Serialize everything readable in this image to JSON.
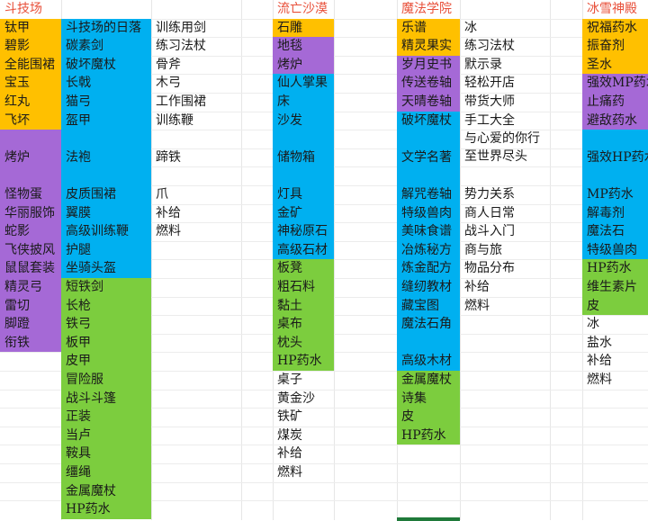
{
  "colors": {
    "orange": "#ffc000",
    "purple": "#a569d6",
    "blue": "#00b0f0",
    "green": "#7ccd3e",
    "none": "",
    "header": "#e8503a"
  },
  "columns": [
    {
      "id": "arena-a",
      "cells": [
        {
          "text": "斗技场",
          "color": "none",
          "header": true
        },
        {
          "text": "钛甲",
          "color": "orange"
        },
        {
          "text": "碧影",
          "color": "orange"
        },
        {
          "text": "全能围裙",
          "color": "orange"
        },
        {
          "text": "宝玉",
          "color": "orange"
        },
        {
          "text": "红丸",
          "color": "orange"
        },
        {
          "text": "飞坏",
          "color": "orange"
        },
        {
          "text": "烤炉",
          "color": "purple",
          "rows": 3
        },
        {
          "text": "怪物蛋",
          "color": "purple"
        },
        {
          "text": "华丽服饰",
          "color": "purple"
        },
        {
          "text": "蛇影",
          "color": "purple"
        },
        {
          "text": "飞侠披风",
          "color": "purple"
        },
        {
          "text": "鼠鼠套装",
          "color": "purple"
        },
        {
          "text": "精灵弓",
          "color": "purple"
        },
        {
          "text": "雷切",
          "color": "purple"
        },
        {
          "text": "脚蹬",
          "color": "purple"
        },
        {
          "text": "衔铁",
          "color": "purple"
        }
      ]
    },
    {
      "id": "arena-b",
      "cells": [
        {
          "text": "",
          "color": "none"
        },
        {
          "text": "斗技场的日落",
          "color": "blue"
        },
        {
          "text": "碳素剑",
          "color": "blue"
        },
        {
          "text": "破坏魔杖",
          "color": "blue"
        },
        {
          "text": "长戟",
          "color": "blue"
        },
        {
          "text": "猫弓",
          "color": "blue"
        },
        {
          "text": "盔甲",
          "color": "blue"
        },
        {
          "text": "法袍",
          "color": "blue",
          "rows": 3
        },
        {
          "text": "皮质围裙",
          "color": "blue"
        },
        {
          "text": "翼膜",
          "color": "blue"
        },
        {
          "text": "高级训练鞭",
          "color": "blue"
        },
        {
          "text": "护腿",
          "color": "blue"
        },
        {
          "text": "坐骑头盔",
          "color": "blue"
        },
        {
          "text": "短铁剑",
          "color": "green"
        },
        {
          "text": "长枪",
          "color": "green"
        },
        {
          "text": "铁弓",
          "color": "green"
        },
        {
          "text": "板甲",
          "color": "green"
        },
        {
          "text": "皮甲",
          "color": "green"
        },
        {
          "text": "冒险服",
          "color": "green"
        },
        {
          "text": "战斗斗篷",
          "color": "green"
        },
        {
          "text": "正装",
          "color": "green"
        },
        {
          "text": "当卢",
          "color": "green"
        },
        {
          "text": "鞍具",
          "color": "green"
        },
        {
          "text": "缰绳",
          "color": "green"
        },
        {
          "text": "金属魔杖",
          "color": "green"
        },
        {
          "text": "HP药水",
          "color": "green"
        }
      ]
    },
    {
      "id": "arena-c",
      "cells": [
        {
          "text": "",
          "color": "none"
        },
        {
          "text": "训练用剑",
          "color": "none"
        },
        {
          "text": "练习法杖",
          "color": "none"
        },
        {
          "text": "骨斧",
          "color": "none"
        },
        {
          "text": "木弓",
          "color": "none"
        },
        {
          "text": "工作围裙",
          "color": "none"
        },
        {
          "text": "训练鞭",
          "color": "none"
        },
        {
          "text": "蹄铁",
          "color": "none",
          "rows": 3
        },
        {
          "text": "爪",
          "color": "none"
        },
        {
          "text": "补给",
          "color": "none"
        },
        {
          "text": "燃料",
          "color": "none"
        }
      ]
    },
    {
      "id": "desert",
      "cells": [
        {
          "text": "流亡沙漠",
          "color": "none",
          "header": true
        },
        {
          "text": "石雕",
          "color": "orange"
        },
        {
          "text": "地毯",
          "color": "purple"
        },
        {
          "text": "烤炉",
          "color": "purple"
        },
        {
          "text": "仙人掌果",
          "color": "blue"
        },
        {
          "text": "床",
          "color": "blue"
        },
        {
          "text": "沙发",
          "color": "blue"
        },
        {
          "text": "储物箱",
          "color": "blue",
          "rows": 3
        },
        {
          "text": "灯具",
          "color": "blue"
        },
        {
          "text": "金矿",
          "color": "blue"
        },
        {
          "text": "神秘原石",
          "color": "blue"
        },
        {
          "text": "高级石材",
          "color": "blue"
        },
        {
          "text": "板凳",
          "color": "green"
        },
        {
          "text": "粗石料",
          "color": "green"
        },
        {
          "text": "黏土",
          "color": "green"
        },
        {
          "text": "桌布",
          "color": "green"
        },
        {
          "text": "枕头",
          "color": "green"
        },
        {
          "text": "HP药水",
          "color": "green"
        },
        {
          "text": "桌子",
          "color": "none"
        },
        {
          "text": "黄金沙",
          "color": "none"
        },
        {
          "text": "铁矿",
          "color": "none"
        },
        {
          "text": "煤炭",
          "color": "none"
        },
        {
          "text": "补给",
          "color": "none"
        },
        {
          "text": "燃料",
          "color": "none"
        }
      ]
    },
    {
      "id": "magic-a",
      "cells": [
        {
          "text": "魔法学院",
          "color": "none",
          "header": true
        },
        {
          "text": "乐谱",
          "color": "orange"
        },
        {
          "text": "精灵果实",
          "color": "orange"
        },
        {
          "text": "岁月史书",
          "color": "purple"
        },
        {
          "text": "传送卷轴",
          "color": "purple"
        },
        {
          "text": "天晴卷轴",
          "color": "purple"
        },
        {
          "text": "破坏魔杖",
          "color": "blue"
        },
        {
          "text": "文学名著",
          "color": "blue",
          "rows": 3
        },
        {
          "text": "解咒卷轴",
          "color": "blue"
        },
        {
          "text": "特级兽肉",
          "color": "blue"
        },
        {
          "text": "美味食谱",
          "color": "blue"
        },
        {
          "text": "冶炼秘方",
          "color": "blue"
        },
        {
          "text": "炼金配方",
          "color": "blue"
        },
        {
          "text": "缝纫教材",
          "color": "blue"
        },
        {
          "text": "藏宝图",
          "color": "blue"
        },
        {
          "text": "魔法石角",
          "color": "blue",
          "rows": 2,
          "wrap": true
        },
        {
          "text": "高级木材",
          "color": "blue"
        },
        {
          "text": "金属魔杖",
          "color": "green"
        },
        {
          "text": "诗集",
          "color": "green"
        },
        {
          "text": "皮",
          "color": "green"
        },
        {
          "text": "HP药水",
          "color": "green"
        }
      ]
    },
    {
      "id": "magic-b",
      "cells": [
        {
          "text": "",
          "color": "none"
        },
        {
          "text": "冰",
          "color": "none"
        },
        {
          "text": "练习法杖",
          "color": "none"
        },
        {
          "text": "默示录",
          "color": "none"
        },
        {
          "text": "轻松开店",
          "color": "none"
        },
        {
          "text": "带货大师",
          "color": "none"
        },
        {
          "text": "手工大全",
          "color": "none"
        },
        {
          "text": "与心爱的你行至世界尽头",
          "color": "none",
          "rows": 3,
          "wrap": true
        },
        {
          "text": "势力关系",
          "color": "none"
        },
        {
          "text": "商人日常",
          "color": "none"
        },
        {
          "text": "战斗入门",
          "color": "none"
        },
        {
          "text": "商与旅",
          "color": "none"
        },
        {
          "text": "物品分布",
          "color": "none"
        },
        {
          "text": "补给",
          "color": "none"
        },
        {
          "text": "燃料",
          "color": "none"
        }
      ]
    },
    {
      "id": "ice",
      "cells": [
        {
          "text": "冰雪神殿",
          "color": "none",
          "header": true
        },
        {
          "text": "祝福药水",
          "color": "orange"
        },
        {
          "text": "振奋剂",
          "color": "orange"
        },
        {
          "text": "圣水",
          "color": "orange"
        },
        {
          "text": "强效MP药水",
          "color": "purple"
        },
        {
          "text": "止痛药",
          "color": "purple"
        },
        {
          "text": "避敌药水",
          "color": "purple"
        },
        {
          "text": "强效HP药水",
          "color": "blue",
          "rows": 3
        },
        {
          "text": "MP药水",
          "color": "blue"
        },
        {
          "text": "解毒剂",
          "color": "blue"
        },
        {
          "text": "魔法石",
          "color": "blue"
        },
        {
          "text": "特级兽肉",
          "color": "blue"
        },
        {
          "text": "HP药水",
          "color": "green"
        },
        {
          "text": "维生素片",
          "color": "green"
        },
        {
          "text": "皮",
          "color": "green"
        },
        {
          "text": "冰",
          "color": "none"
        },
        {
          "text": "盐水",
          "color": "none"
        },
        {
          "text": "补给",
          "color": "none"
        },
        {
          "text": "燃料",
          "color": "none"
        }
      ]
    }
  ]
}
